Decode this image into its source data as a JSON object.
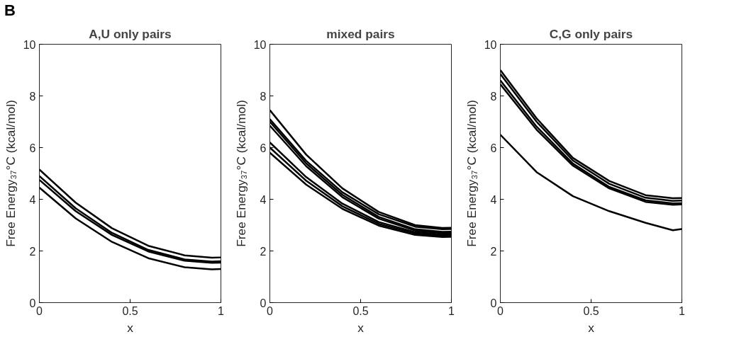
{
  "chart_data": [
    {
      "type": "line",
      "title": "A,U only pairs",
      "xlabel": "x",
      "ylabel": "Free Energy₃₇°C (kcal/mol)",
      "annotations": [
        "B"
      ],
      "xlim": [
        0,
        1
      ],
      "xticks": [
        0,
        0.5,
        1
      ],
      "ylim": [
        0,
        10
      ],
      "yticks": [
        0,
        2,
        4,
        6,
        8,
        10
      ],
      "grid": false,
      "x": [
        0,
        0.2,
        0.4,
        0.6,
        0.8,
        0.95,
        1
      ],
      "series": [
        {
          "color": "#000000",
          "values": [
            5.15,
            3.87,
            2.88,
            2.2,
            1.83,
            1.74,
            1.75
          ]
        },
        {
          "color": "#000000",
          "values": [
            4.9,
            3.65,
            2.7,
            2.04,
            1.67,
            1.59,
            1.6
          ]
        },
        {
          "color": "#000000",
          "values": [
            4.75,
            3.54,
            2.62,
            1.98,
            1.62,
            1.54,
            1.55
          ]
        },
        {
          "color": "#000000",
          "values": [
            4.45,
            3.26,
            2.35,
            1.72,
            1.37,
            1.29,
            1.3
          ]
        }
      ]
    },
    {
      "type": "line",
      "title": "mixed pairs",
      "xlabel": "x",
      "ylabel": "Free Energy₃₇°C (kcal/mol)",
      "xlim": [
        0,
        1
      ],
      "xticks": [
        0,
        0.5,
        1
      ],
      "ylim": [
        0,
        10
      ],
      "yticks": [
        0,
        2,
        4,
        6,
        8,
        10
      ],
      "grid": false,
      "x": [
        0,
        0.2,
        0.4,
        0.6,
        0.8,
        0.95,
        1
      ],
      "series": [
        {
          "color": "#000000",
          "values": [
            7.45,
            5.73,
            4.42,
            3.51,
            3.0,
            2.89,
            2.9
          ]
        },
        {
          "color": "#000000",
          "values": [
            7.1,
            5.49,
            4.27,
            3.42,
            2.94,
            2.84,
            2.85
          ]
        },
        {
          "color": "#000000",
          "values": [
            7.0,
            5.39,
            4.17,
            3.32,
            2.84,
            2.74,
            2.75
          ]
        },
        {
          "color": "#000000",
          "values": [
            6.85,
            5.28,
            4.08,
            3.25,
            2.79,
            2.69,
            2.7
          ]
        },
        {
          "color": "#000000",
          "values": [
            6.2,
            4.86,
            3.83,
            3.12,
            2.73,
            2.64,
            2.65
          ]
        },
        {
          "color": "#000000",
          "values": [
            6.0,
            4.72,
            3.73,
            3.05,
            2.68,
            2.59,
            2.6
          ]
        },
        {
          "color": "#000000",
          "values": [
            5.8,
            4.57,
            3.63,
            2.98,
            2.62,
            2.54,
            2.55
          ]
        }
      ]
    },
    {
      "type": "line",
      "title": "C,G only pairs",
      "xlabel": "x",
      "ylabel": "Free Energy₃₇°C (kcal/mol)",
      "xlim": [
        0,
        1
      ],
      "xticks": [
        0,
        0.5,
        1
      ],
      "ylim": [
        0,
        10
      ],
      "yticks": [
        0,
        2,
        4,
        6,
        8,
        10
      ],
      "grid": false,
      "x": [
        0,
        0.2,
        0.4,
        0.6,
        0.8,
        0.95,
        1
      ],
      "series": [
        {
          "color": "#000000",
          "values": [
            9.0,
            7.13,
            5.6,
            4.71,
            4.16,
            4.04,
            4.05
          ]
        },
        {
          "color": "#000000",
          "values": [
            8.85,
            7.0,
            5.5,
            4.6,
            4.06,
            3.94,
            3.95
          ]
        },
        {
          "color": "#000000",
          "values": [
            8.6,
            6.81,
            5.38,
            4.48,
            3.96,
            3.84,
            3.85
          ]
        },
        {
          "color": "#000000",
          "values": [
            8.45,
            6.69,
            5.3,
            4.42,
            3.9,
            3.79,
            3.8
          ]
        },
        {
          "color": "#000000",
          "values": [
            6.5,
            5.05,
            4.12,
            3.54,
            3.09,
            2.8,
            2.85
          ]
        }
      ]
    }
  ]
}
